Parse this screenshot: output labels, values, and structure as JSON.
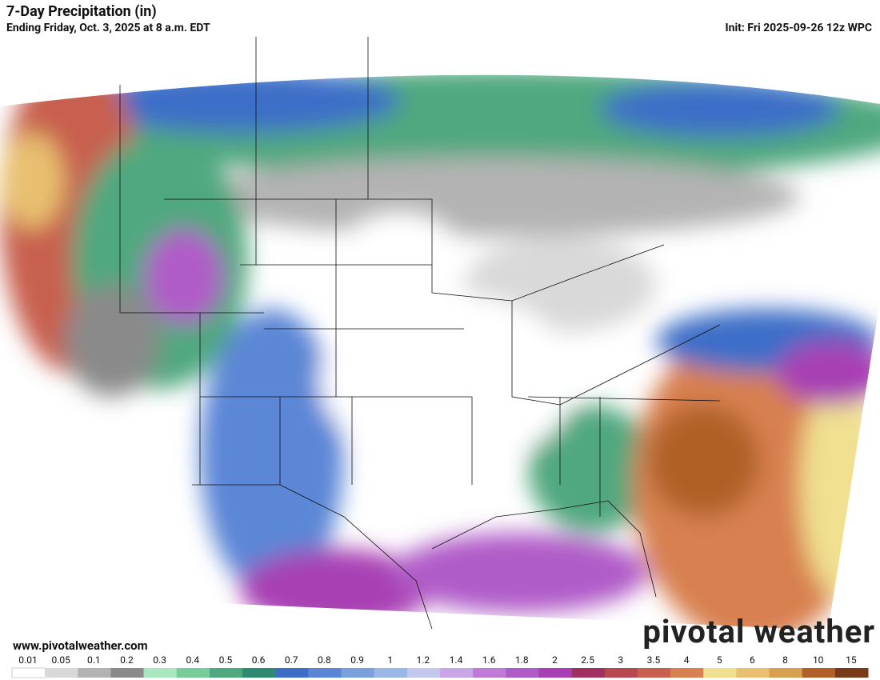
{
  "header": {
    "title": "7-Day Precipitation (in)",
    "subtitle": "Ending Friday, Oct. 3, 2025 at 8 a.m. EDT",
    "init": "Init: Fri 2025-09-26 12z WPC"
  },
  "watermark": {
    "site": "www.pivotalweather.com",
    "brand": "pivotal weather"
  },
  "legend": {
    "labels": [
      "0.01",
      "0.05",
      "0.1",
      "0.2",
      "0.3",
      "0.4",
      "0.5",
      "0.6",
      "0.7",
      "0.8",
      "0.9",
      "1",
      "1.2",
      "1.4",
      "1.6",
      "1.8",
      "2",
      "2.5",
      "3",
      "3.5",
      "4",
      "5",
      "6",
      "8",
      "10",
      "15"
    ],
    "colors": [
      "#ffffff",
      "#d9d9d9",
      "#b3b3b3",
      "#8a8a8a",
      "#a8e8c0",
      "#77cc99",
      "#4fa87f",
      "#2f8a72",
      "#3c6ec8",
      "#5b86d6",
      "#7aa0de",
      "#9ab8e6",
      "#c4c8ee",
      "#c9a6e6",
      "#c07ad8",
      "#b05cc8",
      "#a83fb4",
      "#a03060",
      "#b84850",
      "#c86050",
      "#d88050",
      "#f0e090",
      "#e8c070",
      "#d8a050",
      "#b06028",
      "#7a3a1a"
    ]
  }
}
